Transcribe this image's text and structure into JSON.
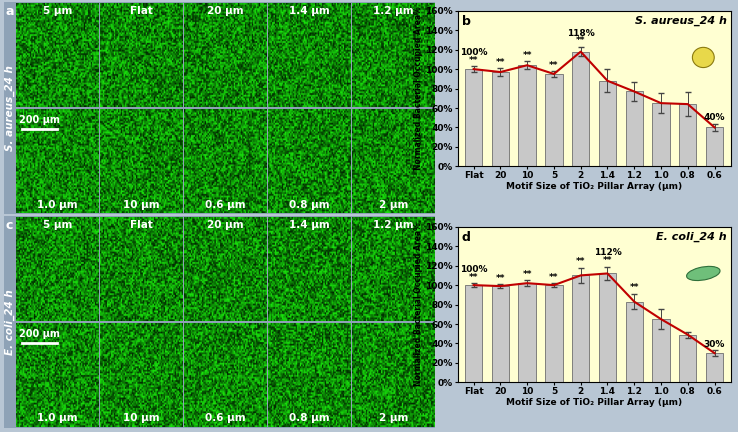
{
  "image_panels": [
    {
      "panel": "a",
      "row_label": "S. aureus_24 h",
      "scale_bar": "200 µm",
      "tiles": [
        [
          "5 µm",
          "Flat",
          "20 µm",
          "1.4 µm",
          "1.2 µm"
        ],
        [
          "1.0 µm",
          "10 µm",
          "0.6 µm",
          "0.8 µm",
          "2 µm"
        ]
      ]
    },
    {
      "panel": "c",
      "row_label": "E. coli_24 h",
      "scale_bar": "200 µm",
      "tiles": [
        [
          "5 µm",
          "Flat",
          "20 µm",
          "1.4 µm",
          "1.2 µm"
        ],
        [
          "1.0 µm",
          "10 µm",
          "0.6 µm",
          "0.8 µm",
          "2 µm"
        ]
      ]
    }
  ],
  "chart_data": [
    {
      "panel": "b",
      "type": "bar",
      "title": "S. aureus_24 h",
      "x_label": "Motif Size of TiO₂ Pillar Array (µm)",
      "y_label": "Normalized Bacterial Occupied Area%",
      "categories": [
        "Flat",
        "20",
        "10",
        "5",
        "2",
        "1.4",
        "1.2",
        "1.0",
        "0.8",
        "0.6"
      ],
      "values": [
        100,
        97,
        104,
        95,
        118,
        88,
        77,
        65,
        64,
        40
      ],
      "errors": [
        3,
        4,
        4,
        3,
        5,
        12,
        10,
        10,
        12,
        4
      ],
      "significance": [
        "**",
        "**",
        "**",
        "**",
        "**",
        null,
        null,
        null,
        null,
        null
      ],
      "value_labels": [
        "100%",
        null,
        null,
        null,
        "118%",
        null,
        null,
        null,
        null,
        "40%"
      ],
      "color": "#c8c8c8",
      "ylim": [
        0,
        160
      ],
      "yticks": [
        {
          "value": 0,
          "label": "0%"
        },
        {
          "value": 20,
          "label": "20%"
        },
        {
          "value": 40,
          "label": "40%"
        },
        {
          "value": 60,
          "label": "60%"
        },
        {
          "value": 80,
          "label": "80%"
        },
        {
          "value": 100,
          "label": "100%"
        },
        {
          "value": 120,
          "label": "120%"
        },
        {
          "value": 140,
          "label": "140%"
        },
        {
          "value": 160,
          "label": "160%"
        }
      ]
    },
    {
      "panel": "d",
      "type": "bar",
      "title": "E. coli_24 h",
      "x_label": "Motif Size of TiO₂ Pillar Array (µm)",
      "y_label": "Normalized Bacterial Occupied Area%",
      "categories": [
        "Flat",
        "20",
        "10",
        "5",
        "2",
        "1.4",
        "1.2",
        "1.0",
        "0.8",
        "0.6"
      ],
      "values": [
        100,
        99,
        102,
        100,
        110,
        112,
        83,
        65,
        49,
        30
      ],
      "errors": [
        2,
        2,
        3,
        2,
        8,
        7,
        8,
        10,
        3,
        3
      ],
      "significance": [
        "**",
        "**",
        "**",
        "**",
        "**",
        "**",
        "**",
        null,
        null,
        null
      ],
      "value_labels": [
        "100%",
        null,
        null,
        null,
        null,
        "112%",
        null,
        null,
        null,
        "30%"
      ],
      "color": "#c8c8c8",
      "ylim": [
        0,
        160
      ],
      "yticks": [
        {
          "value": 0,
          "label": "0%"
        },
        {
          "value": 20,
          "label": "20%"
        },
        {
          "value": 40,
          "label": "40%"
        },
        {
          "value": 60,
          "label": "60%"
        },
        {
          "value": 80,
          "label": "80%"
        },
        {
          "value": 100,
          "label": "100%"
        },
        {
          "value": 120,
          "label": "120%"
        },
        {
          "value": 140,
          "label": "140%"
        },
        {
          "value": 160,
          "label": "160%"
        }
      ]
    }
  ]
}
